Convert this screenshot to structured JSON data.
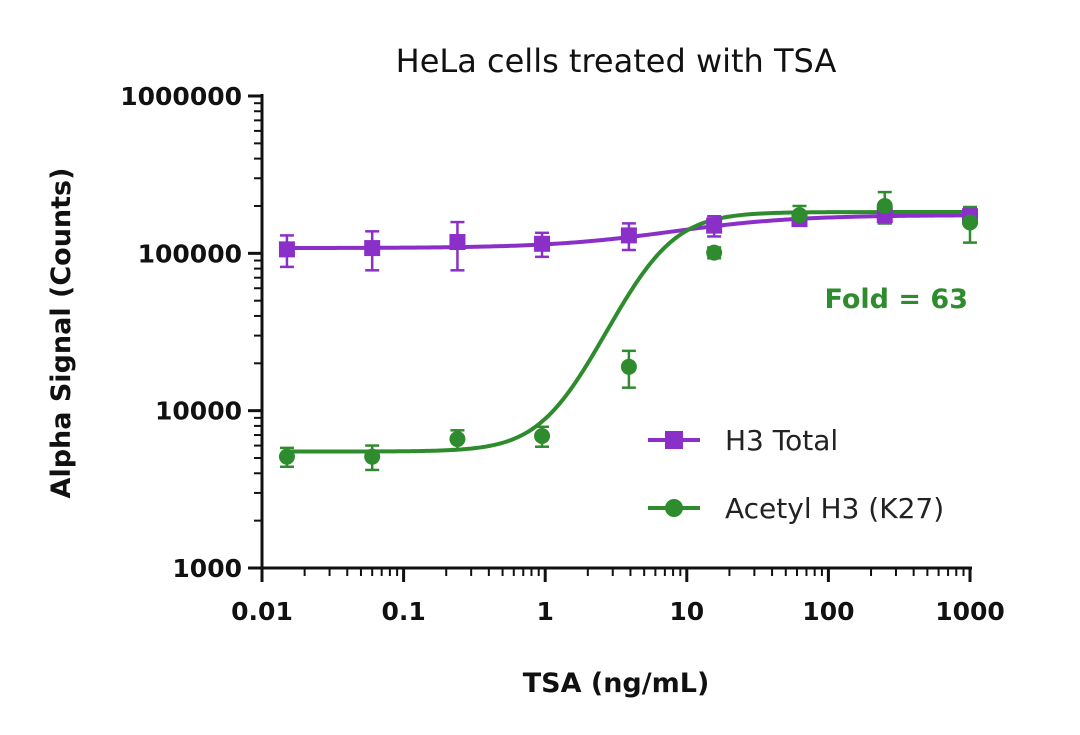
{
  "chart_data": {
    "type": "scatter",
    "title": "HeLa cells treated with TSA",
    "xlabel": "TSA (ng/mL)",
    "ylabel": "Alpha Signal (Counts)",
    "x_scale": "log",
    "y_scale": "log",
    "xlim": [
      0.01,
      1000
    ],
    "ylim": [
      1000,
      1000000
    ],
    "x_tick_labels": [
      "0.01",
      "0.1",
      "1",
      "10",
      "100",
      "1000"
    ],
    "y_tick_labels": [
      "1000",
      "10000",
      "100000",
      "1000000"
    ],
    "grid": false,
    "legend_position": "center-right",
    "series": [
      {
        "name": "H3 Total",
        "color": "#8b2fc9",
        "marker": "square",
        "x": [
          0.015,
          0.06,
          0.24,
          0.95,
          3.9,
          15.6,
          62.5,
          250,
          1000
        ],
        "y": [
          106000,
          108000,
          118000,
          115000,
          130000,
          150000,
          165000,
          175000,
          172000
        ],
        "err": [
          24000,
          30000,
          40000,
          20000,
          25000,
          22000,
          15000,
          20000,
          20000
        ],
        "fit": {
          "bottom": 108000,
          "top": 175000,
          "ec50": 10,
          "hill": 1
        }
      },
      {
        "name": "Acetyl H3 (K27)",
        "color": "#2e8b2e",
        "marker": "circle",
        "x": [
          0.015,
          0.06,
          0.24,
          0.95,
          3.9,
          15.6,
          62.5,
          250,
          1000
        ],
        "y": [
          5100,
          5100,
          6600,
          6900,
          19000,
          101000,
          175000,
          200000,
          157000
        ],
        "err": [
          700,
          900,
          900,
          1000,
          5000,
          8000,
          25000,
          45000,
          40000
        ],
        "fit": {
          "bottom": 5500,
          "top": 183000,
          "ec50": 6,
          "hill": 2.2
        }
      }
    ],
    "annotations": [
      {
        "text": "Fold = 63",
        "color": "#2e8b2e"
      }
    ]
  }
}
